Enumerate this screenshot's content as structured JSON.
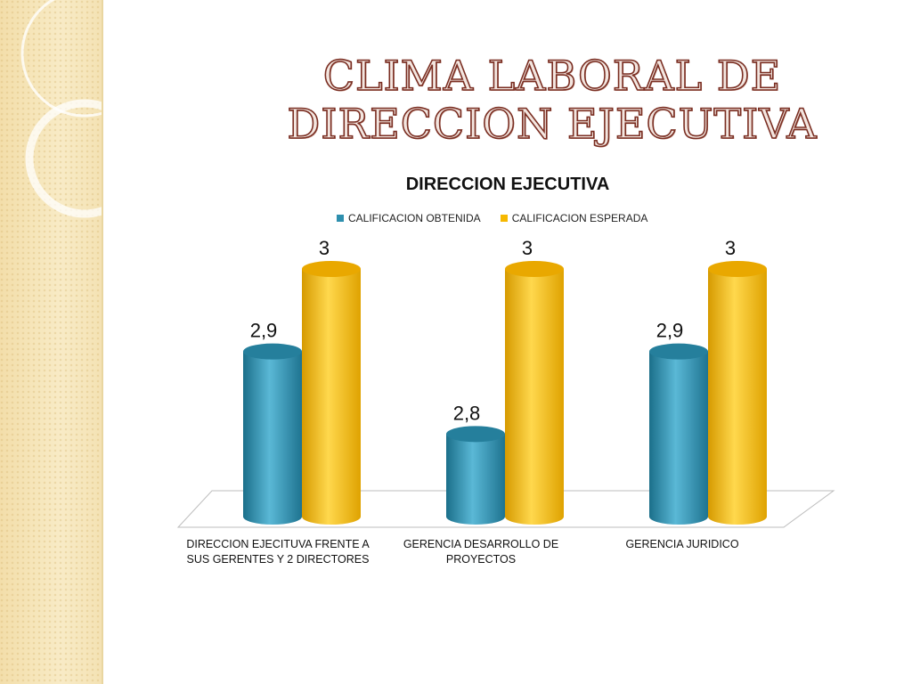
{
  "slide": {
    "title_line1": "CLIMA LABORAL DE",
    "title_line2": "DIRECCION EJECUTIVA"
  },
  "chart_data": {
    "type": "bar",
    "title": "DIRECCION EJECUTIVA",
    "categories": [
      "DIRECCION EJECITUVA FRENTE A SUS GERENTES Y 2 DIRECTORES",
      "GERENCIA DESARROLLO DE PROYECTOS",
      "GERENCIA JURIDICO"
    ],
    "series": [
      {
        "name": "CALIFICACION OBTENIDA",
        "values": [
          2.9,
          2.8,
          2.9
        ],
        "labels": [
          "2,9",
          "2,8",
          "2,9"
        ],
        "color": "#2e8fae"
      },
      {
        "name": "CALIFICACION ESPERADA",
        "values": [
          3,
          3,
          3
        ],
        "labels": [
          "3",
          "3",
          "3"
        ],
        "color": "#f6b800"
      }
    ],
    "ylim": [
      2.7,
      3.0
    ],
    "xlabel": "",
    "ylabel": "",
    "legend_position": "top",
    "style": "3d-cylinder"
  }
}
